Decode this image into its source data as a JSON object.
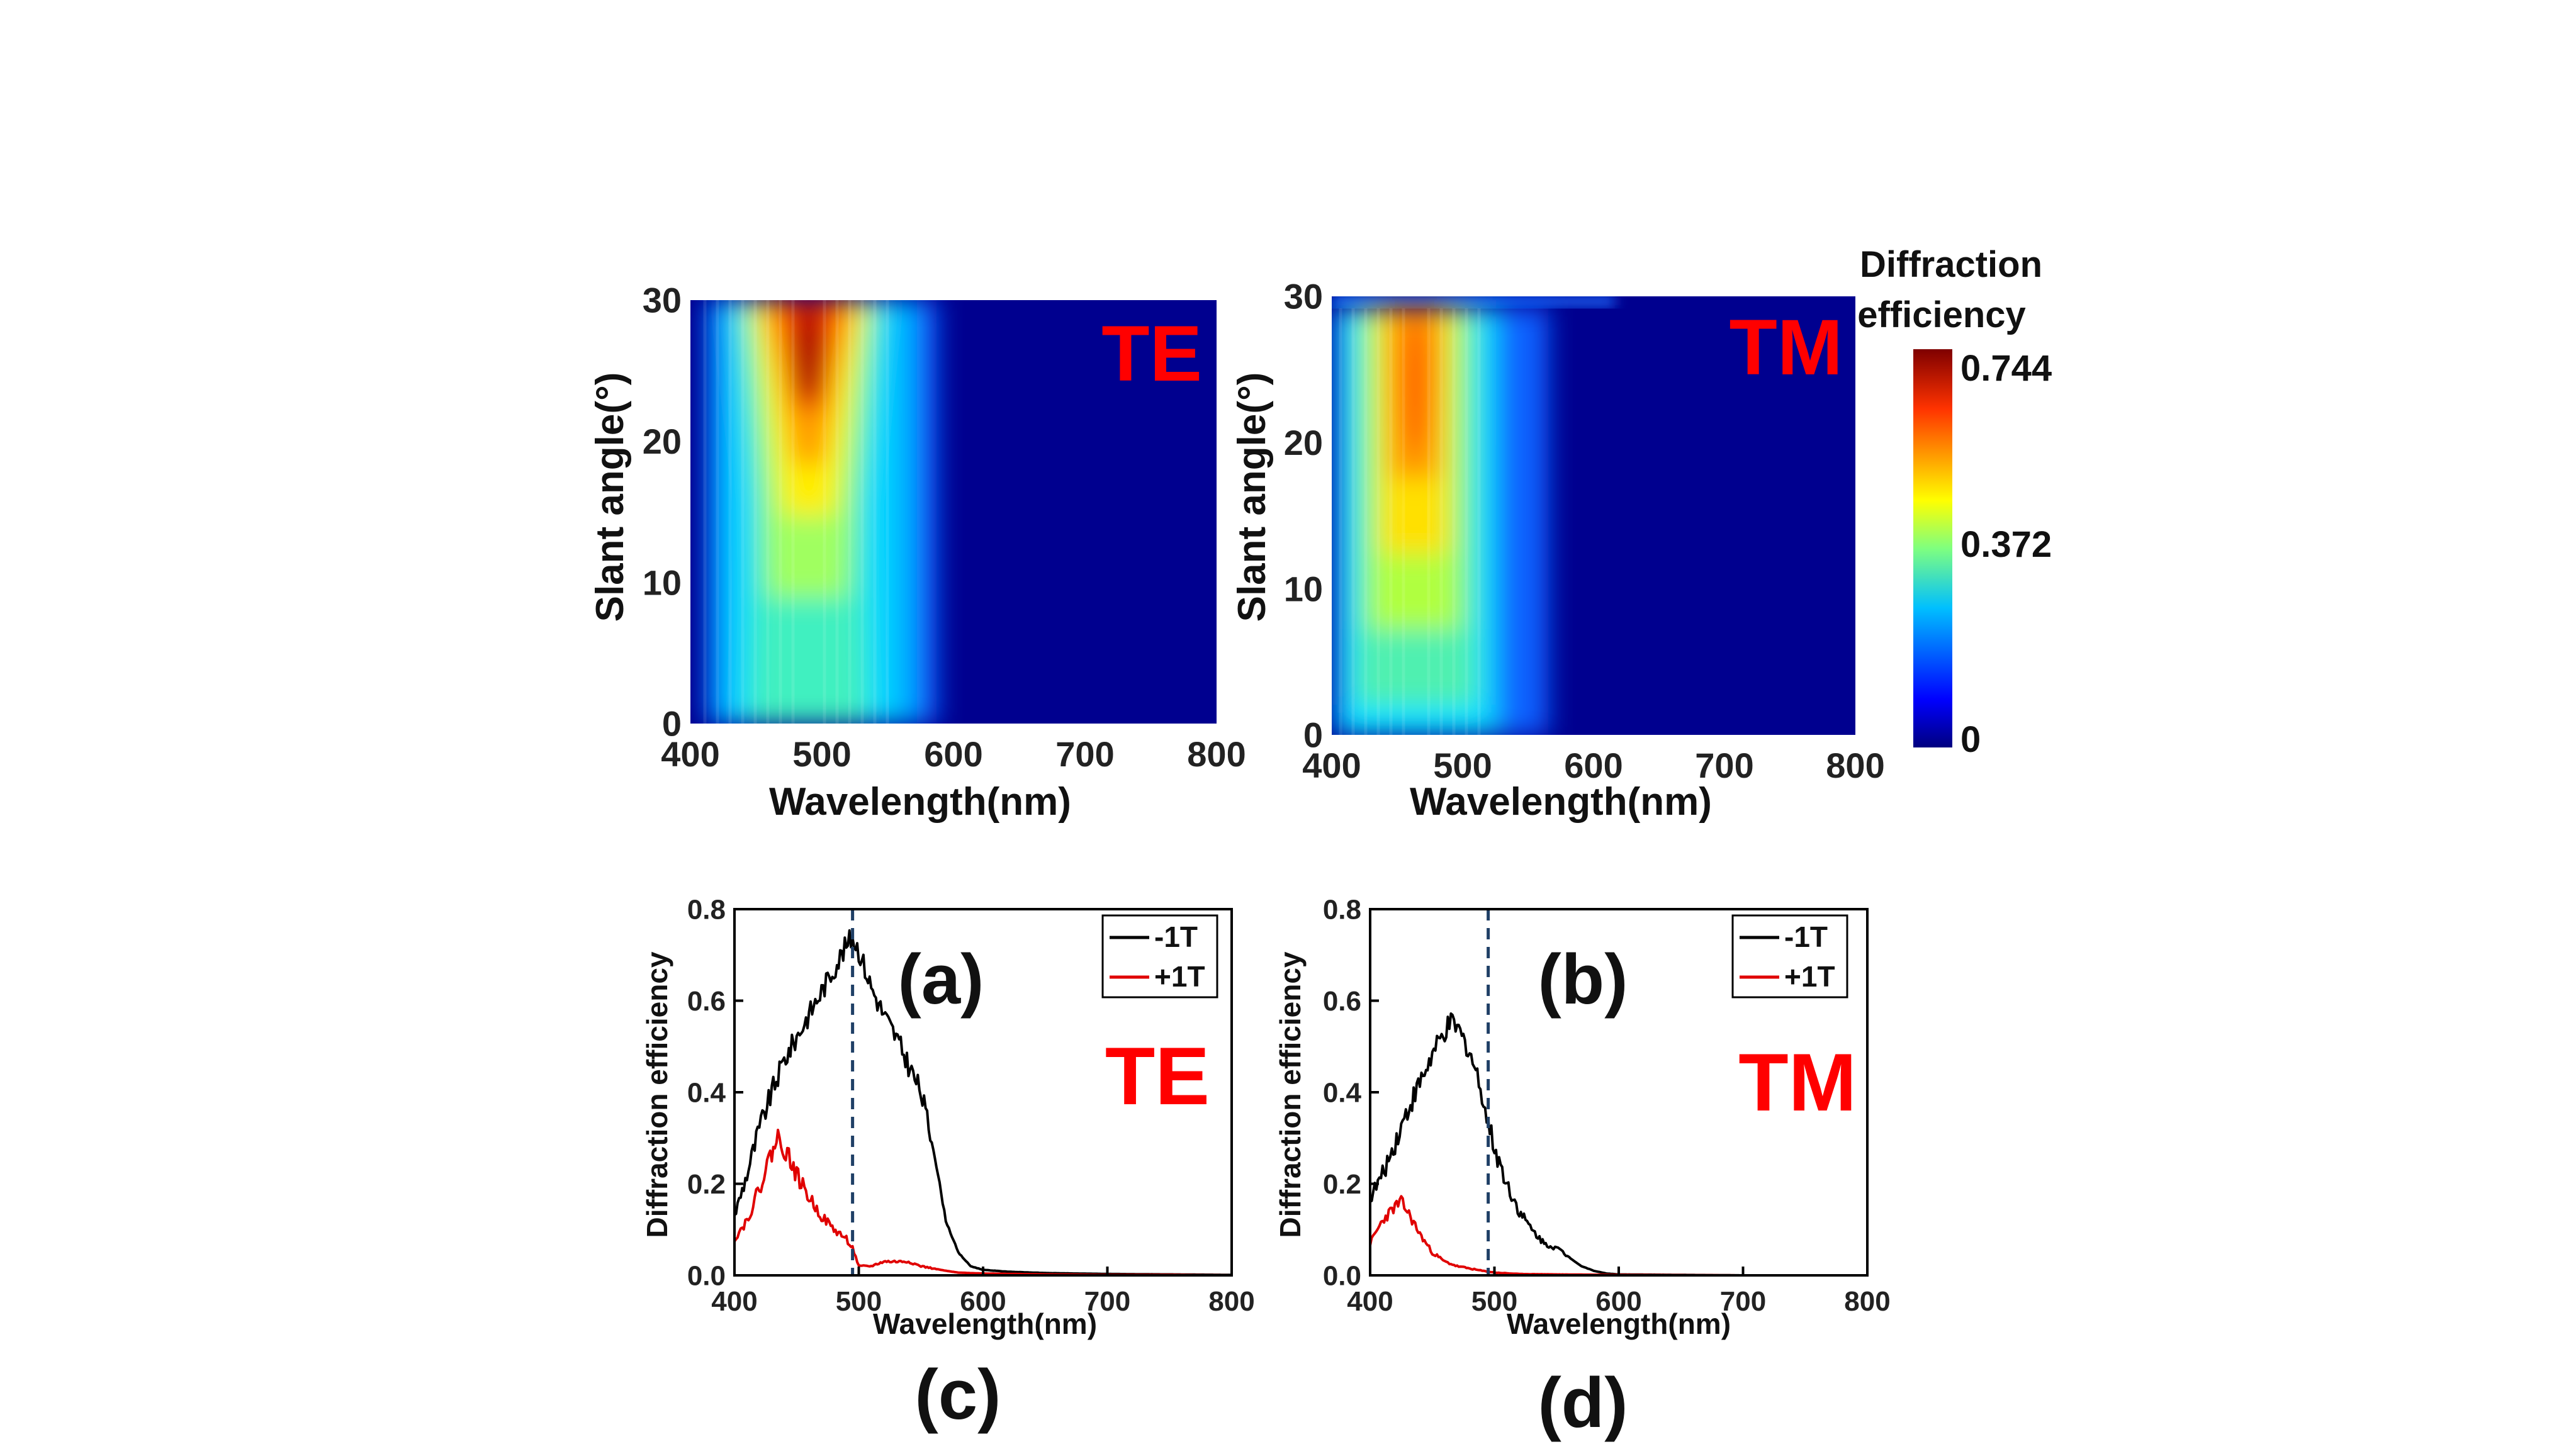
{
  "chart_data": [
    {
      "type": "heatmap",
      "panel_label": "(a)",
      "overlay_label": "TE",
      "xlabel": "Wavelength(nm)",
      "ylabel": "Slant angle(°)",
      "xlim": [
        400,
        800
      ],
      "ylim": [
        0,
        30
      ],
      "xticks": [
        "400",
        "500",
        "600",
        "700",
        "800"
      ],
      "yticks": [
        "0",
        "10",
        "20",
        "30"
      ],
      "peak": {
        "wavelength": 487,
        "angle": 27,
        "value": 0.744
      },
      "band_nm": [
        430,
        560
      ]
    },
    {
      "type": "heatmap",
      "panel_label": "(b)",
      "overlay_label": "TM",
      "xlabel": "Wavelength(nm)",
      "ylabel": "Slant angle(°)",
      "xlim": [
        400,
        800
      ],
      "ylim": [
        0,
        30
      ],
      "xticks": [
        "400",
        "500",
        "600",
        "700",
        "800"
      ],
      "yticks": [
        "0",
        "10",
        "20",
        "30"
      ],
      "peak": {
        "wavelength": 465,
        "angle": 25,
        "value": 0.6
      },
      "band_nm": [
        410,
        525
      ]
    },
    {
      "type": "line",
      "panel_label": "(c)",
      "overlay_label": "TE",
      "xlabel": "Wavelength(nm)",
      "ylabel": "Diffraction efficiency",
      "xlim": [
        400,
        800
      ],
      "ylim": [
        0,
        0.8
      ],
      "xticks": [
        "400",
        "500",
        "600",
        "700",
        "800"
      ],
      "yticks": [
        "0.0",
        "0.2",
        "0.4",
        "0.6",
        "0.8"
      ],
      "vline_x": 495,
      "legend_position": "top-right",
      "series": [
        {
          "name": "-1T",
          "color": "#000000",
          "x": [
            400,
            410,
            420,
            430,
            440,
            450,
            460,
            470,
            480,
            490,
            495,
            500,
            510,
            520,
            530,
            540,
            550,
            560,
            570,
            580,
            590,
            600,
            620,
            650,
            700,
            750,
            800
          ],
          "y": [
            0.13,
            0.22,
            0.32,
            0.4,
            0.47,
            0.52,
            0.57,
            0.62,
            0.67,
            0.72,
            0.74,
            0.71,
            0.63,
            0.57,
            0.52,
            0.46,
            0.4,
            0.28,
            0.12,
            0.05,
            0.02,
            0.012,
            0.008,
            0.005,
            0.003,
            0.002,
            0.001
          ]
        },
        {
          "name": "+1T",
          "color": "#e00000",
          "x": [
            400,
            410,
            420,
            430,
            435,
            440,
            450,
            460,
            470,
            480,
            490,
            495,
            500,
            510,
            520,
            530,
            540,
            550,
            560,
            570,
            580,
            600,
            650,
            700,
            750,
            800
          ],
          "y": [
            0.08,
            0.12,
            0.19,
            0.27,
            0.3,
            0.28,
            0.22,
            0.17,
            0.13,
            0.1,
            0.08,
            0.06,
            0.02,
            0.02,
            0.03,
            0.03,
            0.03,
            0.02,
            0.015,
            0.01,
            0.006,
            0.004,
            0.002,
            0.001,
            0.001,
            0.0
          ]
        }
      ]
    },
    {
      "type": "line",
      "panel_label": "(d)",
      "overlay_label": "TM",
      "xlabel": "Wavelength(nm)",
      "ylabel": "Diffraction efficiency",
      "xlim": [
        400,
        800
      ],
      "ylim": [
        0,
        0.8
      ],
      "xticks": [
        "400",
        "500",
        "600",
        "700",
        "800"
      ],
      "yticks": [
        "0.0",
        "0.2",
        "0.4",
        "0.6",
        "0.8"
      ],
      "vline_x": 495,
      "legend_position": "top-right",
      "series": [
        {
          "name": "-1T",
          "color": "#000000",
          "x": [
            400,
            410,
            420,
            430,
            440,
            450,
            460,
            465,
            470,
            480,
            490,
            495,
            500,
            510,
            520,
            530,
            540,
            550,
            560,
            570,
            580,
            590,
            600,
            650,
            700,
            750,
            800
          ],
          "y": [
            0.17,
            0.22,
            0.29,
            0.36,
            0.42,
            0.48,
            0.53,
            0.55,
            0.54,
            0.49,
            0.4,
            0.33,
            0.28,
            0.2,
            0.14,
            0.1,
            0.07,
            0.06,
            0.04,
            0.02,
            0.01,
            0.004,
            0.002,
            0.001,
            0.0,
            0.0,
            0.0
          ]
        },
        {
          "name": "+1T",
          "color": "#e00000",
          "x": [
            400,
            410,
            420,
            425,
            430,
            440,
            450,
            460,
            470,
            480,
            490,
            500,
            520,
            550,
            600,
            700,
            800
          ],
          "y": [
            0.07,
            0.12,
            0.15,
            0.16,
            0.14,
            0.09,
            0.05,
            0.03,
            0.02,
            0.015,
            0.01,
            0.006,
            0.003,
            0.002,
            0.001,
            0.0,
            0.0
          ]
        }
      ]
    }
  ],
  "colorbar": {
    "title_line1": "Diffraction",
    "title_line2": "efficiency",
    "max_label": "0.744",
    "mid_label": "0.372",
    "min_label": "0"
  }
}
